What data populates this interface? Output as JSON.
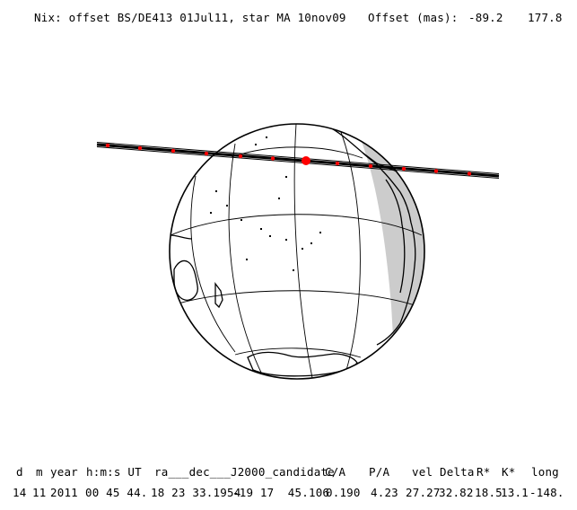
{
  "header": {
    "title": "Nix: offset BS/DE413 01Jul11, star MA 10nov09",
    "offset_label": "Offset (mas):",
    "offset_x": "-89.2",
    "offset_y": "177.8"
  },
  "table": {
    "headers": [
      "d",
      "m",
      "year",
      "h:m:s UT",
      "ra___dec___J2000_candidate",
      "C/A",
      "P/A",
      "vel",
      "Delta",
      "R*",
      "K*",
      "long"
    ],
    "row": {
      "d": "14",
      "m": "11",
      "year": "2011",
      "time": "00 45 44.",
      "ra": "18 23 33.1954",
      "dec": "-19 17  45.106",
      "ca": "0.190",
      "pa": "4.23",
      "vel": "27.27",
      "delta": "32.82",
      "rstar": "18.5",
      "kstar": "13.1",
      "long": "-148."
    }
  },
  "colors": {
    "globe_outline": "#000000",
    "night_shade": "#cccccc",
    "track": "#000000",
    "track_tick": "#ff0000",
    "closest_approach": "#ff0000"
  }
}
